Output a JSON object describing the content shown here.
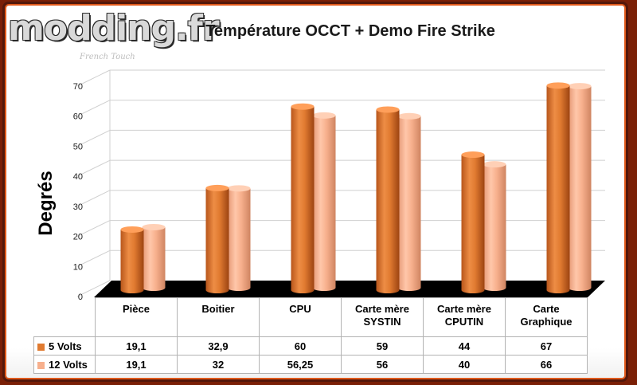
{
  "logo": {
    "text": "modding.fr",
    "tagline": "French Touch"
  },
  "chart_data": {
    "type": "bar",
    "title": "Température OCCT + Demo Fire Strike",
    "ylabel": "Degrés",
    "ylim": [
      0,
      70
    ],
    "yticks": [
      "0",
      "10",
      "20",
      "30",
      "40",
      "50",
      "60",
      "70"
    ],
    "categories": [
      [
        "Pièce"
      ],
      [
        "Boitier"
      ],
      [
        "CPU"
      ],
      [
        "Carte mère",
        "SYSTIN"
      ],
      [
        "Carte mère",
        "CPUTIN"
      ],
      [
        "Carte",
        "Graphique"
      ]
    ],
    "series": [
      {
        "name": "5 Volts",
        "color": "#e07a30",
        "values": [
          19.1,
          32.9,
          60,
          59,
          44,
          67
        ],
        "labels": [
          "19,1",
          "32,9",
          "60",
          "59",
          "44",
          "67"
        ]
      },
      {
        "name": "12 Volts",
        "color": "#f7b08d",
        "values": [
          19.1,
          32,
          56.25,
          56,
          40,
          66
        ],
        "labels": [
          "19,1",
          "32",
          "56,25",
          "56",
          "40",
          "66"
        ]
      }
    ]
  }
}
